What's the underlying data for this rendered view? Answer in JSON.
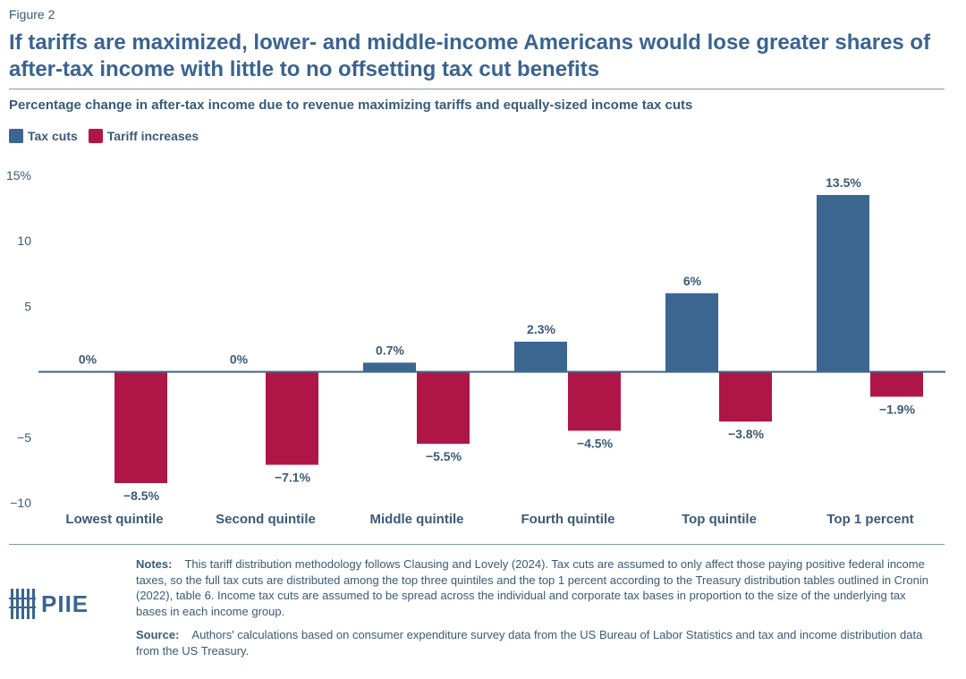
{
  "figure_label": "Figure 2",
  "title": "If tariffs are maximized, lower- and middle-income Americans would lose greater shares of after-tax income with little to no offsetting tax cut benefits",
  "subtitle": "Percentage change in after-tax income due to revenue maximizing tariffs and equally-sized income tax cuts",
  "colors": {
    "tax_cuts": "#3b6690",
    "tariff_increases": "#b01547",
    "text": "#3a5a78"
  },
  "chart_data": {
    "type": "bar",
    "categories": [
      "Lowest quintile",
      "Second quintile",
      "Middle quintile",
      "Fourth quintile",
      "Top quintile",
      "Top 1 percent"
    ],
    "series": [
      {
        "name": "Tax cuts",
        "values": [
          0,
          0,
          0.7,
          2.3,
          6,
          13.5
        ],
        "labels": [
          "0%",
          "0%",
          "0.7%",
          "2.3%",
          "6%",
          "13.5%"
        ]
      },
      {
        "name": "Tariff increases",
        "values": [
          -8.5,
          -7.1,
          -5.5,
          -4.5,
          -3.8,
          -1.9
        ],
        "labels": [
          "−8.5%",
          "−7.1%",
          "−5.5%",
          "−4.5%",
          "−3.8%",
          "−1.9%"
        ]
      }
    ],
    "ylim": [
      -10,
      15
    ],
    "yticks": [
      15,
      10,
      5,
      -5,
      -10
    ],
    "ytick_labels": [
      "15%",
      "10",
      "5",
      "−5",
      "−10"
    ],
    "legend": "top-left",
    "grid": false
  },
  "notes_label": "Notes:",
  "notes_text": "This tariff distribution methodology follows Clausing and Lovely (2024). Tax cuts are assumed to only affect those paying positive federal income taxes, so the full tax cuts are distributed among the top three quintiles and the top 1 percent according to the Treasury distribution tables outlined in Cronin (2022), table 6. Income tax cuts are assumed to be spread across the individual and corporate tax bases in proportion to the size of the underlying tax bases in each income group.",
  "source_label": "Source:",
  "source_text": "Authors' calculations based on consumer expenditure survey data from the US Bureau of Labor Statistics and tax and income distribution data from the US Treasury.",
  "logo_text": "PIIE"
}
